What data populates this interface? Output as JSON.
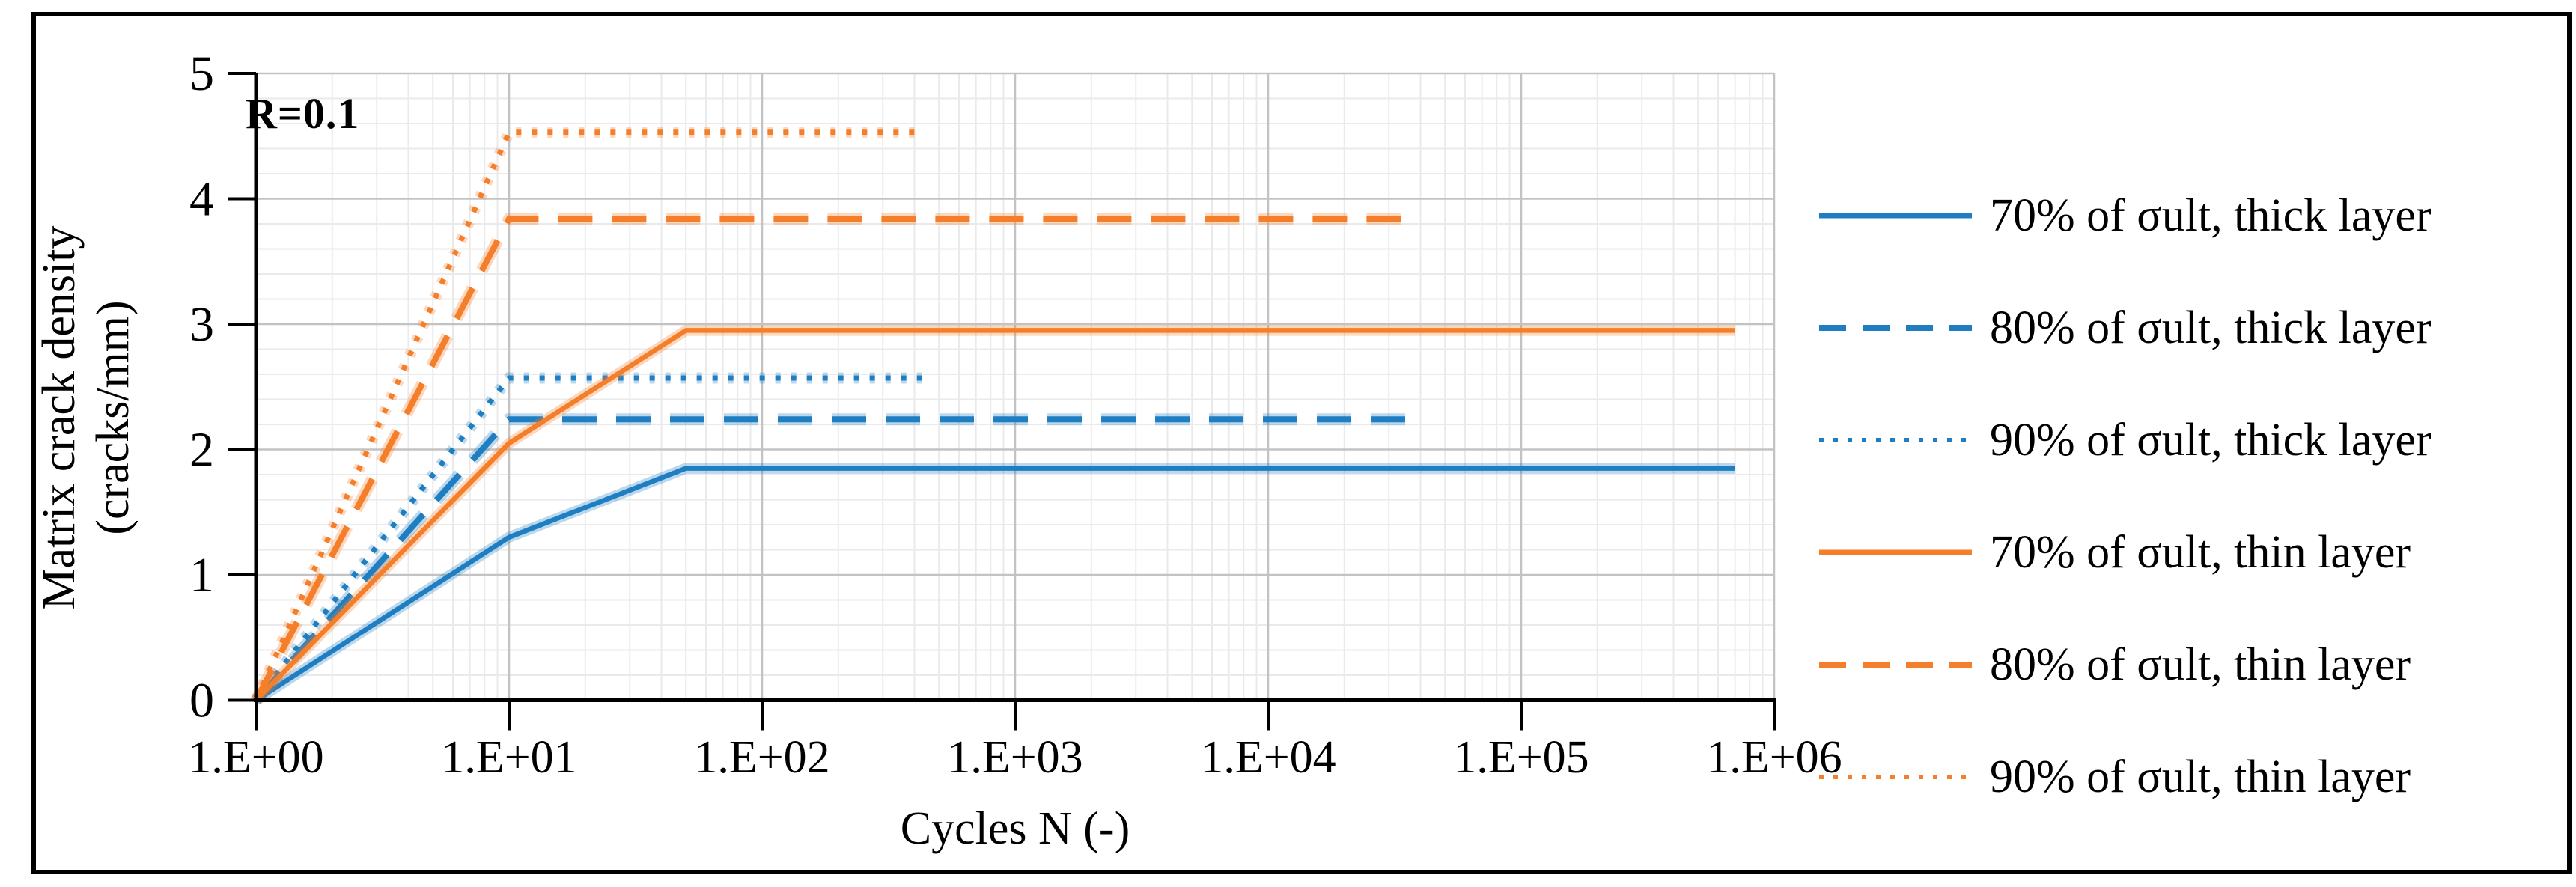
{
  "annotation_note": "",
  "chart_data": {
    "type": "line",
    "title": "",
    "annotation": "R=0.1",
    "xlabel": "Cycles N (-)",
    "ylabel_line1": "Matrix crack density",
    "ylabel_line2": "(cracks/mm)",
    "x_scale": "log",
    "xlim": [
      1,
      1000000
    ],
    "ylim": [
      0,
      5
    ],
    "x_ticks": [
      "1.E+00",
      "1.E+01",
      "1.E+02",
      "1.E+03",
      "1.E+04",
      "1.E+05",
      "1.E+06"
    ],
    "y_ticks": [
      "0",
      "1",
      "2",
      "3",
      "4",
      "5"
    ],
    "y_major_step": 1,
    "y_minor_step": 0.2,
    "grid": true,
    "legend_position": "right",
    "colors": {
      "thick_layer": "#1F7EC2",
      "thin_layer": "#F57E2A"
    },
    "grid_colors": {
      "major": "#C3C3C3",
      "minor": "#EAEAEA"
    },
    "series": [
      {
        "name": "70% of σult, thick layer",
        "color": "#1F7EC2",
        "style": "solid",
        "points": [
          [
            1,
            0
          ],
          [
            10,
            1.3
          ],
          [
            50,
            1.85
          ],
          [
            700000,
            1.85
          ]
        ]
      },
      {
        "name": "80% of σult, thick layer",
        "color": "#1F7EC2",
        "style": "dashed",
        "points": [
          [
            1,
            0
          ],
          [
            10,
            2.24
          ],
          [
            38000,
            2.24
          ]
        ]
      },
      {
        "name": "90% of σult, thick layer",
        "color": "#1F7EC2",
        "style": "dotted",
        "points": [
          [
            1,
            0
          ],
          [
            10,
            2.57
          ],
          [
            450,
            2.57
          ]
        ]
      },
      {
        "name": "70% of σult, thin layer",
        "color": "#F57E2A",
        "style": "solid",
        "points": [
          [
            1,
            0
          ],
          [
            10,
            2.05
          ],
          [
            50,
            2.95
          ],
          [
            700000,
            2.95
          ]
        ]
      },
      {
        "name": "80% of σult, thin layer",
        "color": "#F57E2A",
        "style": "dashed",
        "points": [
          [
            1,
            0
          ],
          [
            10,
            3.84
          ],
          [
            38000,
            3.84
          ]
        ]
      },
      {
        "name": "90% of σult, thin layer",
        "color": "#F57E2A",
        "style": "dotted",
        "points": [
          [
            1,
            0
          ],
          [
            10,
            4.53
          ],
          [
            430,
            4.53
          ]
        ]
      }
    ]
  }
}
